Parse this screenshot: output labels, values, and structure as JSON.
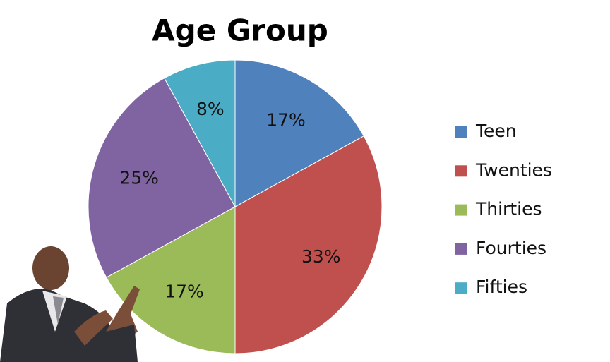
{
  "chart_data": {
    "type": "pie",
    "title": "Age Group",
    "categories": [
      "Teen",
      "Twenties",
      "Thirties",
      "Fourties",
      "Fifties"
    ],
    "values": [
      17,
      33,
      17,
      25,
      8
    ],
    "value_labels": [
      "17%",
      "33%",
      "17%",
      "25%",
      "8%"
    ],
    "colors": [
      "#4f81bd",
      "#c0504d",
      "#9bbb59",
      "#8064a2",
      "#4bacc6"
    ],
    "legend": "right"
  }
}
